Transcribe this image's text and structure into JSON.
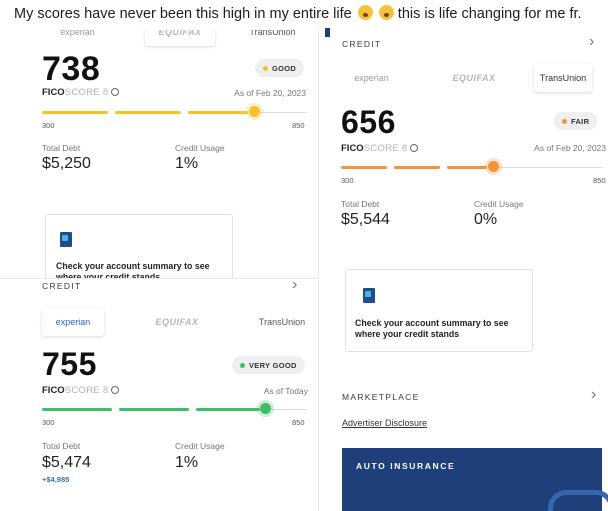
{
  "caption": {
    "text": "My scores have never been this high in my entire life",
    "tail": "this is life changing for me fr."
  },
  "panel1": {
    "bureaus": [
      "experian",
      "EQUIFAX",
      "TransUnion"
    ],
    "score": "738",
    "fico_brand": "FICO",
    "fico_model": "SCORE 8",
    "badge": "GOOD",
    "as_of": "As of Feb 20, 2023",
    "range_min": "300",
    "range_max": "850",
    "score_fraction": 0.8,
    "total_debt_label": "Total Debt",
    "total_debt": "$5,250",
    "credit_usage_label": "Credit Usage",
    "credit_usage": "1%",
    "summary_text": "Check your account summary to see where your credit stands"
  },
  "panel2": {
    "section": "CREDIT",
    "bureaus": [
      "experian",
      "EQUIFAX",
      "TransUnion"
    ],
    "score": "656",
    "fico_brand": "FICO",
    "fico_model": "SCORE 8",
    "badge": "FAIR",
    "as_of": "As of Feb 20, 2023",
    "range_min": "300",
    "range_max": "850",
    "score_fraction": 0.58,
    "total_debt_label": "Total Debt",
    "total_debt": "$5,544",
    "credit_usage_label": "Credit Usage",
    "credit_usage": "0%",
    "summary_text": "Check your account summary to see where your credit stands",
    "marketplace": "MARKETPLACE",
    "advertiser_link": "Advertiser Disclosure",
    "auto_insurance": "AUTO INSURANCE"
  },
  "panel3": {
    "section": "CREDIT",
    "bureaus": [
      "experian",
      "EQUIFAX",
      "TransUnion"
    ],
    "score": "755",
    "fico_brand": "FICO",
    "fico_model": "SCORE 8",
    "badge": "VERY GOOD",
    "as_of": "As of Today",
    "range_min": "300",
    "range_max": "850",
    "score_fraction": 0.84,
    "total_debt_label": "Total Debt",
    "total_debt": "$5,474",
    "total_debt_change": "+$4,985",
    "credit_usage_label": "Credit Usage",
    "credit_usage": "1%"
  },
  "colors": {
    "good": "#f2c428",
    "fair": "#f3943a",
    "very_good": "#3fbd6b",
    "promo_bg": "#1f3f7a",
    "experian_blue": "#2a66c7"
  },
  "icons": [
    "chevron-right-icon",
    "info-icon",
    "account-summary-icon",
    "status-dot-icon"
  ]
}
